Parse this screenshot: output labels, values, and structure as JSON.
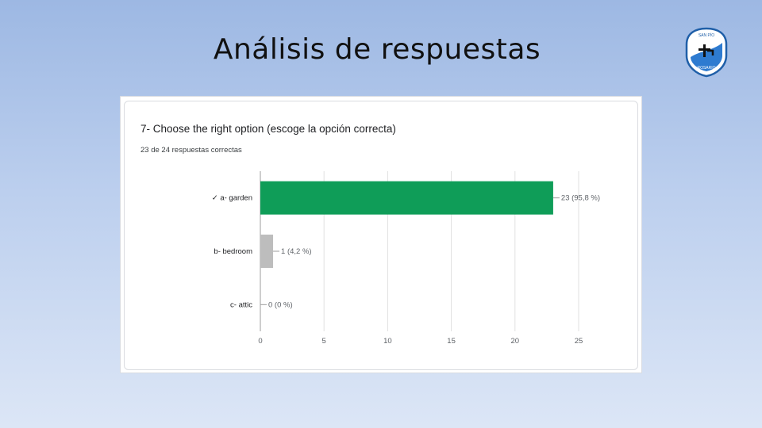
{
  "slide": {
    "title": "Análisis de respuestas"
  },
  "logo": {
    "icon": "school-shield-logo",
    "text_top": "SAN PÍO",
    "text_bottom": "ROSARIO"
  },
  "question": {
    "title": "7- Choose the right option (escoge la opción correcta)",
    "summary": "23 de 24 respuestas correctas"
  },
  "colors": {
    "correct": "#0f9d58",
    "other": "#bdbdbd",
    "grid": "#e0e0e0"
  },
  "chart_data": {
    "type": "bar",
    "orientation": "horizontal",
    "categories": [
      "✓ a- garden",
      "b- bedroom",
      "c- attic"
    ],
    "values": [
      23,
      1,
      0
    ],
    "data_labels": [
      "23 (95,8 %)",
      "1 (4,2 %)",
      "0 (0 %)"
    ],
    "correct_index": 0,
    "xlim": [
      0,
      25
    ],
    "xticks": [
      0,
      5,
      10,
      15,
      20,
      25
    ],
    "grid": true
  }
}
